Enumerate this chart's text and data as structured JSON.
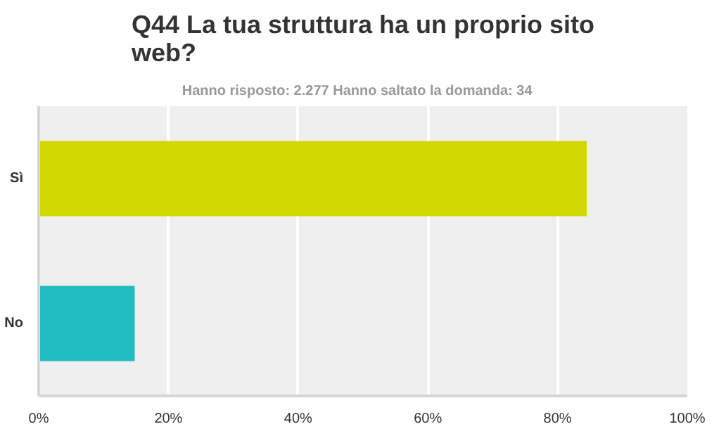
{
  "chart_data": {
    "type": "bar",
    "orientation": "horizontal",
    "title": "Q44 La tua struttura ha un proprio sito web?",
    "subtitle": "Hanno risposto: 2.277    Hanno saltato la domanda: 34",
    "categories": [
      "Sì",
      "No"
    ],
    "values": [
      84.5,
      14.8
    ],
    "colors": [
      "#d1d700",
      "#22bdc1"
    ],
    "xlim": [
      0,
      100
    ],
    "xticks": [
      {
        "value": 0,
        "label": "0%"
      },
      {
        "value": 20,
        "label": "20%"
      },
      {
        "value": 40,
        "label": "40%"
      },
      {
        "value": 60,
        "label": "60%"
      },
      {
        "value": 80,
        "label": "80%"
      },
      {
        "value": 100,
        "label": "100%"
      }
    ],
    "grid": "x"
  }
}
